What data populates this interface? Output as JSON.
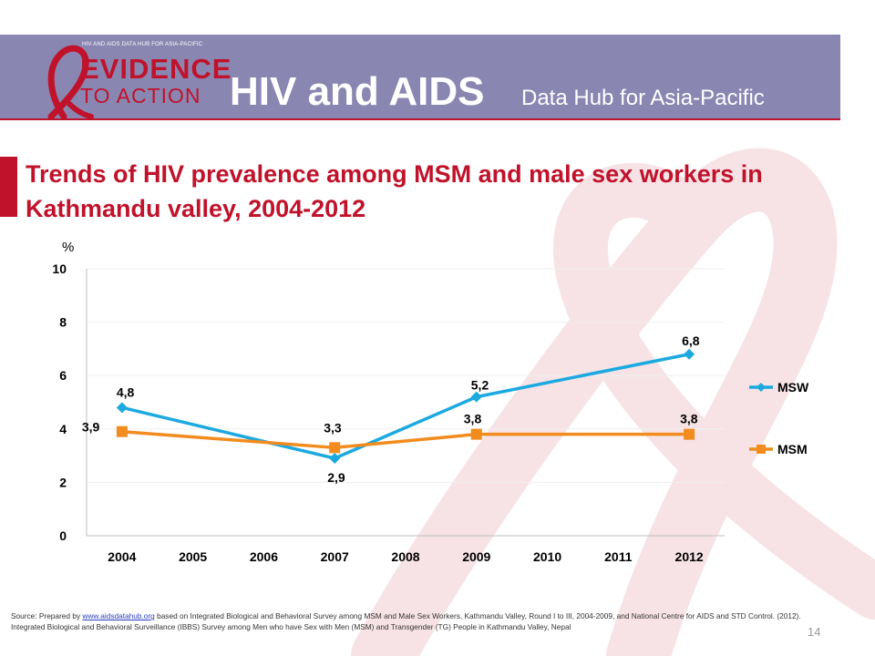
{
  "header": {
    "logo_small_text": "HIV AND AIDS DATA HUB FOR ASIA-PACIFIC",
    "logo_line1": "EVIDENCE",
    "logo_line2": "TO ACTION",
    "title_main": "HIV and AIDS",
    "title_sub": "Data Hub for Asia-Pacific"
  },
  "slide": {
    "title": "Trends of HIV prevalence among MSM and male sex workers in Kathmandu valley, 2004-2012",
    "page_number": "14"
  },
  "footer": {
    "source_prefix": "Source: Prepared by",
    "link_text": "www.aidsdatahub.org",
    "source_rest": "based on Integrated Biological and Behavioral Survey among MSM and Male Sex Workers, Kathmandu Valley, Round I to III, 2004-2009, and National Centre for AIDS and STD Control. (2012). Integrated Biological and Behavioral Surveillance (IBBS) Survey among Men who have Sex with Men (MSM) and Transgender (TG) People in Kathmandu Valley, Nepal"
  },
  "colors": {
    "header_bg": "#8a86b2",
    "brand_red": "#c0122a",
    "msw": "#1ca9e0",
    "msm": "#f28c1e"
  },
  "chart_data": {
    "type": "line",
    "ylabel": "%",
    "ylim": [
      0,
      10
    ],
    "yticks": [
      "0",
      "2",
      "4",
      "6",
      "8",
      "10"
    ],
    "categories": [
      "2004",
      "2005",
      "2006",
      "2007",
      "2008",
      "2009",
      "2010",
      "2011",
      "2012"
    ],
    "grid": true,
    "legend": "right",
    "series": [
      {
        "name": "MSW",
        "color": "#1ca9e0",
        "marker": "diamond",
        "points": [
          {
            "x": "2004",
            "y": 4.8,
            "label": "4,8"
          },
          {
            "x": "2007",
            "y": 2.9,
            "label": "2,9"
          },
          {
            "x": "2009",
            "y": 5.2,
            "label": "5,2"
          },
          {
            "x": "2012",
            "y": 6.8,
            "label": "6,8"
          }
        ]
      },
      {
        "name": "MSM",
        "color": "#f28c1e",
        "marker": "square",
        "points": [
          {
            "x": "2004",
            "y": 3.9,
            "label": "3,9"
          },
          {
            "x": "2007",
            "y": 3.3,
            "label": "3,3"
          },
          {
            "x": "2009",
            "y": 3.8,
            "label": "3,8"
          },
          {
            "x": "2012",
            "y": 3.8,
            "label": "3,8"
          }
        ]
      }
    ]
  }
}
